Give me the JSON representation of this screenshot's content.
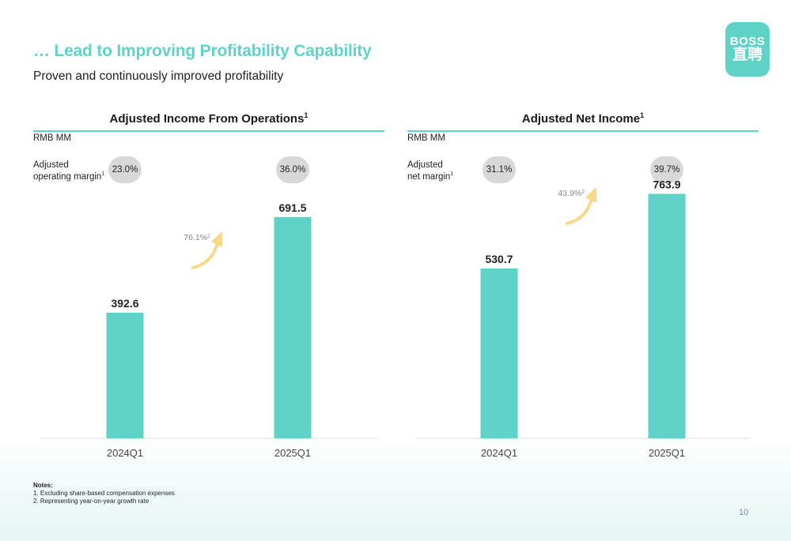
{
  "header": {
    "title": "… Lead to Improving Profitability Capability",
    "subtitle": "Proven and continuously improved profitability"
  },
  "logo": {
    "line1": "BOSS",
    "line2": "直聘"
  },
  "chart_data": [
    {
      "type": "bar",
      "title": "Adjusted Income From Operations",
      "title_sup": "1",
      "unit": "RMB MM",
      "categories": [
        "2024Q1",
        "2025Q1"
      ],
      "values": [
        392.6,
        691.5
      ],
      "value_labels": [
        "392.6",
        "691.5"
      ],
      "ylim": [
        0,
        950
      ],
      "margin_label_1": "Adjusted",
      "margin_label_2": "operating margin",
      "margin_sup": "1",
      "margins": [
        "23.0%",
        "36.0%"
      ],
      "growth": "76.1%",
      "growth_sup": "2",
      "bar_color": "#5fd3c7",
      "arrow_color": "#f7d987"
    },
    {
      "type": "bar",
      "title": "Adjusted Net Income",
      "title_sup": "1",
      "unit": "RMB MM",
      "categories": [
        "2024Q1",
        "2025Q1"
      ],
      "values": [
        530.7,
        763.9
      ],
      "value_labels": [
        "530.7",
        "763.9"
      ],
      "ylim": [
        0,
        950
      ],
      "margin_label_1": "Adjusted",
      "margin_label_2": "net margin",
      "margin_sup": "1",
      "margins": [
        "31.1%",
        "39.7%"
      ],
      "growth": "43.9%",
      "growth_sup": "2",
      "bar_color": "#5fd3c7",
      "arrow_color": "#f7d987"
    }
  ],
  "notes": {
    "heading": "Notes:",
    "items": [
      "1. Excluding share-based compensation expenses",
      "2. Representing year-on-year growth rate"
    ]
  },
  "page_number": "10"
}
